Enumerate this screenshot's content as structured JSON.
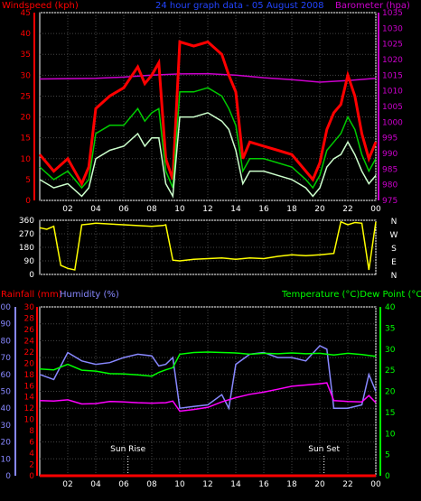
{
  "chart_data": [
    {
      "type": "line",
      "title": "24 hour graph data - 05 August 2008",
      "left_axis_label": "Windspeed (kph)",
      "right_axis_label": "Barometer (hpa)",
      "ylim_left": [
        0,
        45
      ],
      "yticks_left": [
        0,
        5,
        10,
        15,
        20,
        25,
        30,
        35,
        40,
        45
      ],
      "ylim_right": [
        975,
        1035
      ],
      "yticks_right": [
        975,
        980,
        985,
        990,
        995,
        1000,
        1005,
        1010,
        1015,
        1020,
        1025,
        1030,
        1035
      ],
      "xticks": [
        "02",
        "04",
        "06",
        "08",
        "10",
        "12",
        "14",
        "16",
        "18",
        "20",
        "22",
        "00"
      ],
      "grid": true,
      "colors": {
        "gust": "#ff0000",
        "average": "#00cc00",
        "speed": "#ccffcc",
        "barometer": "#cc00cc"
      },
      "series": [
        {
          "name": "Barometer",
          "axis": "right",
          "x": [
            0,
            2,
            4,
            6,
            8,
            10,
            12,
            14,
            16,
            18,
            20,
            22,
            24
          ],
          "values": [
            1013.8,
            1013.9,
            1014,
            1014.4,
            1015,
            1015.4,
            1015.5,
            1015,
            1014.2,
            1013.6,
            1012.8,
            1013.3,
            1014
          ]
        },
        {
          "name": "Gust",
          "axis": "left",
          "x": [
            0,
            1,
            2,
            3,
            3.5,
            4,
            5,
            6,
            7,
            7.5,
            8,
            8.5,
            9,
            9.5,
            10,
            11,
            12,
            13,
            13.5,
            14,
            14.5,
            15,
            16,
            17,
            18,
            19,
            19.5,
            20,
            20.5,
            21,
            21.5,
            22,
            22.5,
            23,
            23.5,
            24
          ],
          "values": [
            11,
            7,
            10,
            4,
            8,
            22,
            25,
            27,
            32,
            28,
            30,
            33,
            10,
            5,
            38,
            37,
            38,
            35,
            30,
            26,
            10,
            14,
            13,
            12,
            11,
            7,
            5,
            9,
            17,
            21,
            23,
            30,
            25,
            16,
            10,
            14
          ]
        },
        {
          "name": "Average",
          "axis": "left",
          "x": [
            0,
            1,
            2,
            3,
            3.5,
            4,
            5,
            6,
            7,
            7.5,
            8,
            8.5,
            9,
            9.5,
            10,
            11,
            12,
            13,
            13.5,
            14,
            14.5,
            15,
            16,
            17,
            18,
            19,
            19.5,
            20,
            20.5,
            21,
            21.5,
            22,
            22.5,
            23,
            23.5,
            24
          ],
          "values": [
            8,
            5,
            7,
            3,
            5,
            16,
            18,
            18,
            22,
            19,
            21,
            22,
            7,
            3,
            26,
            26,
            27,
            25,
            22,
            18,
            7,
            10,
            10,
            9,
            8,
            5,
            3,
            6,
            12,
            14,
            16,
            20,
            17,
            11,
            7,
            10
          ]
        },
        {
          "name": "Speed",
          "axis": "left",
          "x": [
            0,
            1,
            2,
            3,
            3.5,
            4,
            5,
            6,
            7,
            7.5,
            8,
            8.5,
            9,
            9.5,
            10,
            11,
            12,
            13,
            13.5,
            14,
            14.5,
            15,
            16,
            17,
            18,
            19,
            19.5,
            20,
            20.5,
            21,
            21.5,
            22,
            22.5,
            23,
            23.5,
            24
          ],
          "values": [
            5,
            3,
            4,
            1,
            3,
            10,
            12,
            13,
            16,
            13,
            15,
            15,
            4,
            1,
            20,
            20,
            21,
            19,
            17,
            12,
            4,
            7,
            7,
            6,
            5,
            3,
            1,
            3,
            8,
            10,
            11,
            14,
            11,
            7,
            4,
            6
          ]
        }
      ]
    },
    {
      "type": "line",
      "left_axis_label": "",
      "ylim_left": [
        0,
        360
      ],
      "yticks_left": [
        0,
        90,
        180,
        270,
        360
      ],
      "right_labels": [
        "N",
        "W",
        "S",
        "E",
        "N"
      ],
      "xticks": [
        "02",
        "04",
        "06",
        "08",
        "10",
        "12",
        "14",
        "16",
        "18",
        "20",
        "22",
        "00"
      ],
      "grid": true,
      "colors": {
        "direction": "#ffff00"
      },
      "series": [
        {
          "name": "Wind Direction",
          "x": [
            0,
            0.5,
            1,
            1.5,
            2,
            2.5,
            3,
            3.5,
            4,
            6,
            8,
            8.8,
            9,
            9.5,
            10,
            11,
            12,
            13,
            14,
            15,
            16,
            17,
            18,
            19,
            20,
            20.5,
            21,
            21.5,
            22,
            22.5,
            23,
            23.5,
            24
          ],
          "values": [
            310,
            300,
            320,
            60,
            40,
            30,
            330,
            335,
            340,
            330,
            320,
            325,
            330,
            95,
            90,
            100,
            105,
            110,
            100,
            110,
            105,
            120,
            130,
            125,
            130,
            135,
            140,
            350,
            330,
            345,
            340,
            30,
            350
          ]
        }
      ]
    },
    {
      "type": "line",
      "left_axis_labels": [
        "Rainfall (mm)",
        "Humidity (%)"
      ],
      "right_axis_label": "Temperature (°C)Dew Point (°C)",
      "ylim_rain": [
        0,
        30
      ],
      "yticks_rain": [
        0,
        2,
        4,
        6,
        8,
        10,
        12,
        14,
        16,
        18,
        20,
        22,
        24,
        26,
        28,
        30
      ],
      "ylim_humidity": [
        0,
        100
      ],
      "yticks_humidity": [
        0,
        10,
        20,
        30,
        40,
        50,
        60,
        70,
        80,
        90,
        100
      ],
      "ylim_right": [
        0,
        40
      ],
      "yticks_right": [
        0,
        5,
        10,
        15,
        20,
        25,
        30,
        35,
        40
      ],
      "xticks": [
        "02",
        "04",
        "06",
        "08",
        "10",
        "12",
        "14",
        "16",
        "18",
        "20",
        "22",
        "00"
      ],
      "annotations": [
        {
          "text": "Sun Rise",
          "x": 6.3
        },
        {
          "text": "Sun Set",
          "x": 20.3
        }
      ],
      "grid": true,
      "colors": {
        "rainfall": "#ff0000",
        "humidity": "#8888ff",
        "temperature": "#00ff00",
        "dewpoint": "#ff00ff"
      },
      "series": [
        {
          "name": "Rainfall",
          "axis": "rain",
          "x": [
            0,
            24
          ],
          "values": [
            0,
            0
          ]
        },
        {
          "name": "Humidity",
          "axis": "humidity",
          "x": [
            0,
            1,
            2,
            3,
            4,
            5,
            6,
            7,
            8,
            8.5,
            9,
            9.5,
            10,
            11,
            12,
            13,
            13.5,
            14,
            15,
            16,
            17,
            18,
            19,
            20,
            20.5,
            21,
            22,
            23,
            23.5,
            24
          ],
          "values": [
            60,
            57,
            73,
            68,
            66,
            67,
            70,
            72,
            71,
            65,
            66,
            70,
            40,
            41,
            42,
            48,
            40,
            66,
            72,
            73,
            70,
            70,
            68,
            77,
            75,
            40,
            40,
            42,
            60,
            50
          ]
        },
        {
          "name": "Temperature",
          "axis": "right",
          "x": [
            0,
            1,
            2,
            3,
            4,
            5,
            6,
            7,
            8,
            8.5,
            9,
            9.5,
            10,
            11,
            12,
            13,
            14,
            15,
            16,
            17,
            18,
            19,
            20,
            21,
            22,
            23,
            24
          ],
          "values": [
            25.3,
            25.1,
            26.4,
            25,
            24.8,
            24.2,
            24.1,
            23.9,
            23.6,
            24.5,
            25.1,
            25.6,
            28.8,
            29.2,
            29.3,
            29.2,
            29.1,
            28.8,
            29,
            28.9,
            29.1,
            28.9,
            29,
            28.6,
            29,
            28.7,
            28.3
          ]
        },
        {
          "name": "Dew Point",
          "axis": "right",
          "x": [
            0,
            1,
            2,
            3,
            4,
            5,
            6,
            7,
            8,
            9,
            9.5,
            10,
            11,
            12,
            13,
            14,
            15,
            16,
            17,
            18,
            19,
            20,
            20.5,
            21,
            22,
            23,
            23.5,
            24
          ],
          "values": [
            17.8,
            17.7,
            18,
            17,
            17.1,
            17.6,
            17.5,
            17.3,
            17.2,
            17.3,
            17.7,
            15.3,
            15.7,
            16.2,
            17.5,
            18.5,
            19.3,
            19.8,
            20.5,
            21.2,
            21.5,
            21.8,
            22,
            17.8,
            17.6,
            17.5,
            19,
            17.3
          ]
        }
      ]
    }
  ]
}
